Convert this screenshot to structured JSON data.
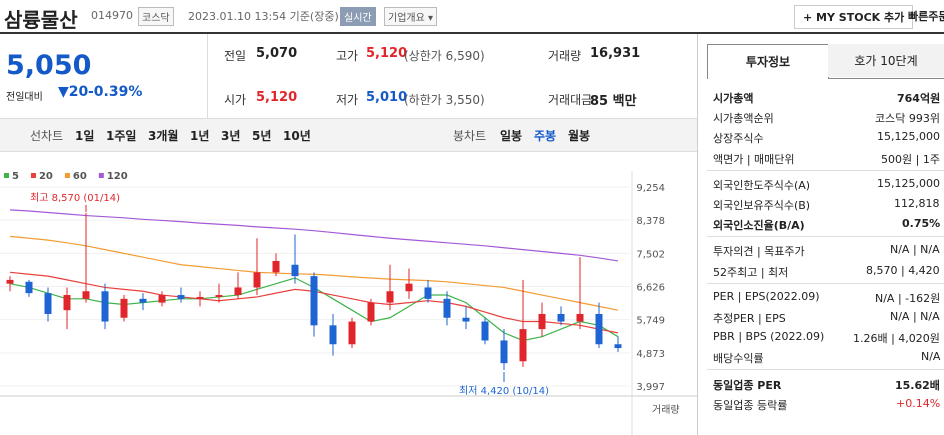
{
  "header": {
    "name": "삼륭물산",
    "code": "014970",
    "market": "코스닥",
    "time": "2023.01.10 13:54 기준(장중)",
    "realtime": "실시간",
    "overview": "기업개요 ▾",
    "mystock": "+ MY STOCK 추가",
    "quick": "빠른주문"
  },
  "price": {
    "current": "5,050",
    "change_label": "전일대비",
    "change": "▼20",
    "change_pct": "-0.39%"
  },
  "summary": [
    [
      "전일",
      "5,070"
    ],
    [
      "고가",
      "5,120",
      "(상한가 6,590)"
    ],
    [
      "거래량",
      "16,931"
    ],
    [
      "시가",
      "5,120"
    ],
    [
      "저가",
      "5,010",
      "(하한가 3,550)"
    ],
    [
      "거래대금",
      "85 백만"
    ]
  ],
  "periods": {
    "line_label": "선차트",
    "line": [
      "1일",
      "1주일",
      "3개월",
      "1년",
      "3년",
      "5년",
      "10년"
    ],
    "candle_label": "봉차트",
    "candle": [
      "일봉",
      "주봉",
      "월봉"
    ]
  },
  "chart": {
    "ma": [
      {
        "name": "5",
        "color": "#3cb44b",
        "values": [
          6700,
          6600,
          6450,
          6300,
          6300,
          6200,
          6150,
          6200,
          6250,
          6300,
          6300,
          6350,
          6400,
          6550,
          6700,
          6850,
          6600,
          6300,
          6000,
          5700,
          5800,
          6100,
          6400,
          6400,
          6200,
          5800,
          5400,
          5200,
          5300,
          5500,
          5700,
          5600,
          5300
        ]
      },
      {
        "name": "20",
        "color": "#e8413c",
        "values": [
          7000,
          6950,
          6900,
          6800,
          6700,
          6600,
          6550,
          6500,
          6400,
          6350,
          6300,
          6250,
          6300,
          6350,
          6450,
          6550,
          6500,
          6400,
          6300,
          6200,
          6150,
          6200,
          6250,
          6200,
          6100,
          5950,
          5800,
          5700,
          5700,
          5650,
          5600,
          5500,
          5400
        ]
      },
      {
        "name": "60",
        "color": "#f39c33",
        "values": [
          7950,
          7900,
          7850,
          7780,
          7700,
          7600,
          7500,
          7400,
          7300,
          7200,
          7150,
          7100,
          7050,
          7000,
          6980,
          6960,
          6950,
          6920,
          6880,
          6850,
          6820,
          6800,
          6780,
          6750,
          6700,
          6650,
          6600,
          6500,
          6400,
          6300,
          6200,
          6100,
          6000
        ]
      },
      {
        "name": "120",
        "color": "#a45ad6",
        "values": [
          8650,
          8620,
          8580,
          8540,
          8500,
          8470,
          8440,
          8400,
          8370,
          8340,
          8300,
          8270,
          8240,
          8200,
          8170,
          8140,
          8100,
          8050,
          8000,
          7950,
          7900,
          7860,
          7820,
          7780,
          7740,
          7700,
          7650,
          7600,
          7550,
          7500,
          7450,
          7380,
          7300
        ]
      }
    ],
    "candles": [
      [
        6700,
        6900,
        6500,
        6800
      ],
      [
        6750,
        6800,
        6350,
        6450
      ],
      [
        6450,
        6600,
        5700,
        5900
      ],
      [
        6000,
        6600,
        5500,
        6400
      ],
      [
        6300,
        8570,
        6200,
        6500
      ],
      [
        6500,
        6700,
        5500,
        5700
      ],
      [
        5800,
        6400,
        5700,
        6300
      ],
      [
        6300,
        6450,
        6000,
        6200
      ],
      [
        6200,
        6500,
        6100,
        6400
      ],
      [
        6400,
        6600,
        6200,
        6300
      ],
      [
        6300,
        6500,
        6100,
        6350
      ],
      [
        6350,
        6700,
        6200,
        6400
      ],
      [
        6400,
        7000,
        6300,
        6600
      ],
      [
        6600,
        7900,
        6400,
        7000
      ],
      [
        7000,
        7500,
        6900,
        7300
      ],
      [
        7200,
        8000,
        6700,
        6900
      ],
      [
        6900,
        7000,
        5300,
        5600
      ],
      [
        5600,
        5900,
        4800,
        5100
      ],
      [
        5100,
        5800,
        5000,
        5700
      ],
      [
        5700,
        6300,
        5600,
        6200
      ],
      [
        6200,
        7200,
        6000,
        6500
      ],
      [
        6500,
        7100,
        6300,
        6700
      ],
      [
        6600,
        6800,
        6200,
        6300
      ],
      [
        6300,
        6500,
        5600,
        5800
      ],
      [
        5800,
        6100,
        5500,
        5700
      ],
      [
        5700,
        5800,
        5100,
        5200
      ],
      [
        5200,
        5500,
        4420,
        4600
      ],
      [
        4650,
        6800,
        4500,
        5500
      ],
      [
        5500,
        6200,
        5300,
        5900
      ],
      [
        5900,
        6100,
        5600,
        5700
      ],
      [
        5700,
        7400,
        5500,
        5900
      ],
      [
        5900,
        6200,
        5000,
        5100
      ],
      [
        5100,
        5300,
        4900,
        5000
      ]
    ],
    "ylim": [
      3997,
      9254
    ],
    "yticks": [
      {
        "value": 9254,
        "label": "9,254"
      },
      {
        "value": 8378,
        "label": "8,378"
      },
      {
        "value": 7502,
        "label": "7,502"
      },
      {
        "value": 6626,
        "label": "6,626"
      },
      {
        "value": 5749,
        "label": "5,749"
      },
      {
        "value": 4873,
        "label": "4,873"
      },
      {
        "value": 3997,
        "label": "3,997"
      }
    ],
    "high_label": "최고 8,570 (01/14)",
    "low_label": "최저 4,420 (10/14)",
    "volume_label": "거래량"
  },
  "panel": {
    "tabs": [
      "투자정보",
      "호가 10단계"
    ],
    "rows": [
      [
        "시가총액",
        "764억원"
      ],
      [
        "시가총액순위",
        "코스닥 993위"
      ],
      [
        "상장주식수",
        "15,125,000"
      ],
      [
        "액면가 | 매매단위",
        "500원 | 1주"
      ],
      [
        "외국인한도주식수(A)",
        "15,125,000"
      ],
      [
        "외국인보유주식수(B)",
        "112,818"
      ],
      [
        "외국인소진율(B/A)",
        "0.75%"
      ],
      [
        "투자의견 | 목표주가",
        "N/A | N/A"
      ],
      [
        "52주최고 | 최저",
        "8,570 | 4,420"
      ],
      [
        "PER | EPS(2022.09)",
        "N/A | -162원"
      ],
      [
        "추정PER | EPS",
        "N/A | N/A"
      ],
      [
        "PBR | BPS (2022.09)",
        "1.26배 | 4,020원"
      ],
      [
        "배당수익률",
        "N/A"
      ],
      [
        "동일업종 PER",
        "15.62배"
      ],
      [
        "동일업종 등락률",
        "+0.14%"
      ]
    ]
  }
}
